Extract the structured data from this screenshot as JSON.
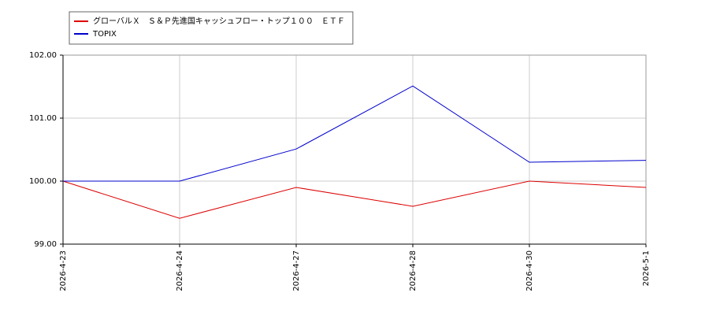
{
  "chart_data": {
    "type": "line",
    "categories": [
      "2026-4-23",
      "2026-4-24",
      "2026-4-27",
      "2026-4-28",
      "2026-4-30",
      "2026-5-1"
    ],
    "series": [
      {
        "name": "グローバルＸ　Ｓ＆Ｐ先進国キャッシュフロー・トップ１００　ＥＴＦ",
        "color": "#dd0000",
        "values": [
          100.0,
          99.41,
          99.9,
          99.6,
          100.0,
          99.9
        ]
      },
      {
        "name": "TOPIX",
        "color": "#0000cc",
        "values": [
          100.0,
          100.0,
          100.51,
          101.51,
          100.3,
          100.33
        ]
      }
    ],
    "ylim": [
      99,
      102
    ],
    "yticks": [
      {
        "value": 99,
        "label": "99.00"
      },
      {
        "value": 100,
        "label": "100.00"
      },
      {
        "value": 101,
        "label": "101.00"
      },
      {
        "value": 102,
        "label": "102.00"
      }
    ],
    "grid": true,
    "legend": "top-left"
  }
}
